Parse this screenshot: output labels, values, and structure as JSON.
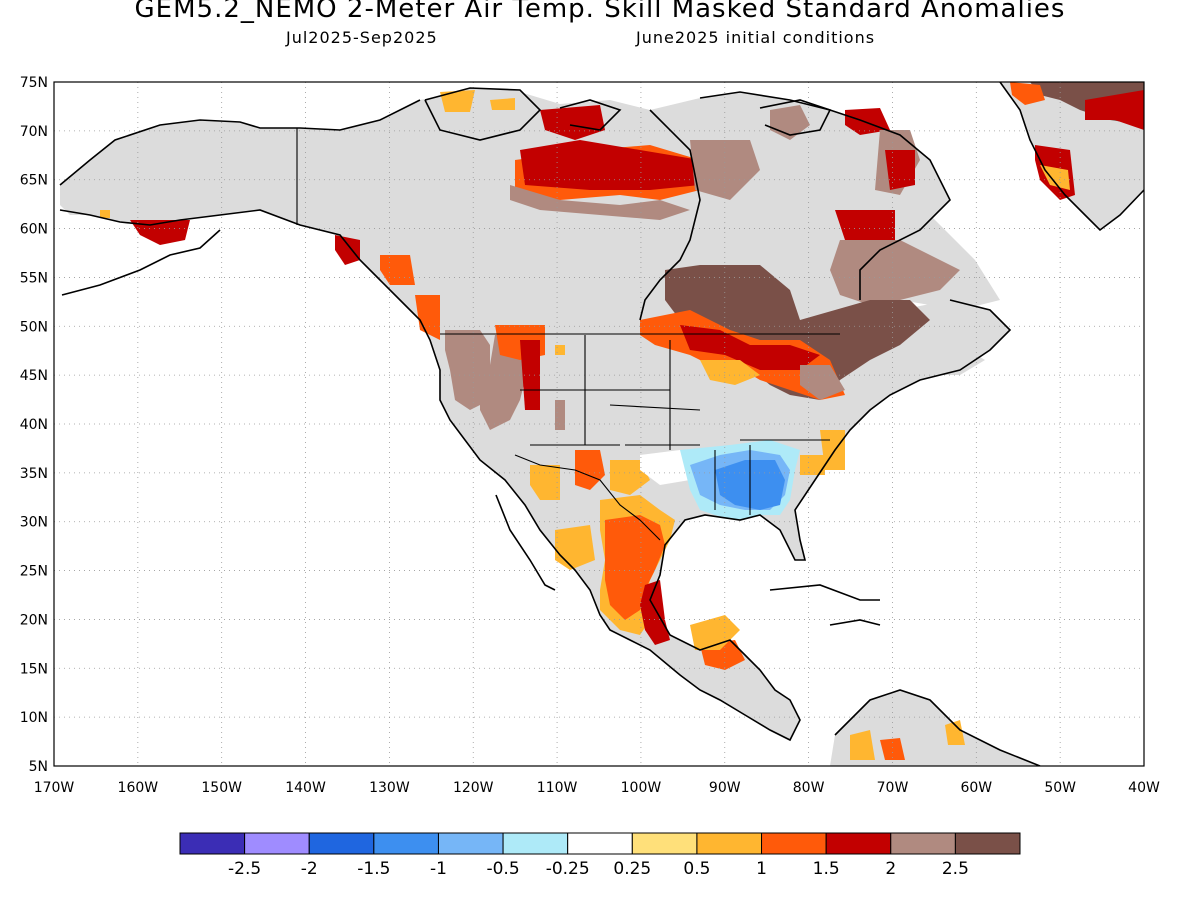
{
  "title": "GEM5.2_NEMO 2-Meter Air Temp. Skill Masked Standard Anomalies",
  "subtitle_left": "Jul2025-Sep2025",
  "subtitle_right": "June2025 initial conditions",
  "map": {
    "lon_range": [
      -170,
      -40
    ],
    "lat_range": [
      5,
      75
    ],
    "lat_labels": [
      "5N",
      "10N",
      "15N",
      "20N",
      "25N",
      "30N",
      "35N",
      "40N",
      "45N",
      "50N",
      "55N",
      "60N",
      "65N",
      "70N",
      "75N"
    ],
    "lon_labels": [
      "170W",
      "160W",
      "150W",
      "140W",
      "130W",
      "120W",
      "110W",
      "100W",
      "90W",
      "80W",
      "70W",
      "60W",
      "50W",
      "40W"
    ],
    "grid": "dotted",
    "colors": {
      "no_skill": "#dcdcdc",
      "coastline": "#000000"
    }
  },
  "colorbar": {
    "colors": [
      "#3b2db5",
      "#9f8cff",
      "#1f66e0",
      "#3d8ff0",
      "#76b6f7",
      "#aeeaf8",
      "#ffffff",
      "#ffe07a",
      "#ffb630",
      "#ff5a0a",
      "#c20000",
      "#b08a80",
      "#7a5048"
    ],
    "labels": [
      "-2.5",
      "-2",
      "-1.5",
      "-1",
      "-0.5",
      "-0.25",
      "0.25",
      "0.5",
      "1",
      "1.5",
      "2",
      "2.5"
    ]
  }
}
